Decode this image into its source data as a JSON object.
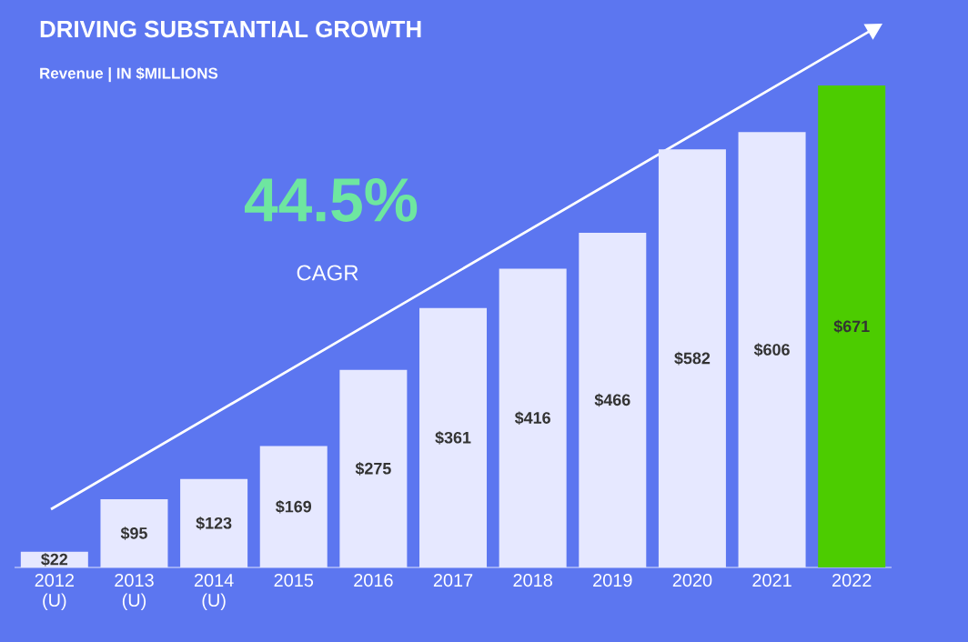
{
  "chart_data": {
    "type": "bar",
    "title": "DRIVING SUBSTANTIAL GROWTH",
    "subtitle": "Revenue | IN $MILLIONS",
    "categories": [
      "2012 (U)",
      "2013 (U)",
      "2014 (U)",
      "2015",
      "2016",
      "2017",
      "2018",
      "2019",
      "2020",
      "2021",
      "2022"
    ],
    "values": [
      22,
      95,
      123,
      169,
      275,
      361,
      416,
      466,
      582,
      606,
      671
    ],
    "colors": [
      "#e6e8ff",
      "#e6e8ff",
      "#e6e8ff",
      "#e6e8ff",
      "#e6e8ff",
      "#e6e8ff",
      "#e6e8ff",
      "#e6e8ff",
      "#e6e8ff",
      "#e6e8ff",
      "#4ccc00"
    ],
    "value_labels": [
      "$22",
      "$95",
      "$123",
      "$169",
      "$275",
      "$361",
      "$416",
      "$466",
      "$582",
      "$606",
      "$671"
    ],
    "annotations": [
      "44.5%",
      "CAGR"
    ]
  }
}
